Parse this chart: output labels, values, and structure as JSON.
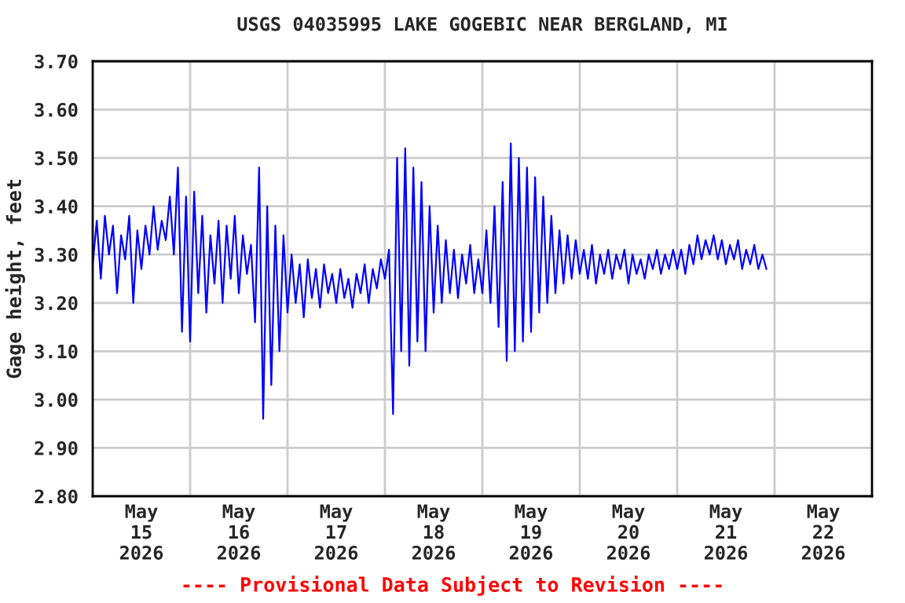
{
  "chart_data": {
    "type": "line",
    "title": "USGS 04035995 LAKE GOGEBIC NEAR BERGLAND, MI",
    "ylabel": "Gage height, feet",
    "annotations": [
      "---- Provisional Data Subject to Revision ----"
    ],
    "xlim": [
      "2026-05-15T00:00",
      "2026-05-23T00:00"
    ],
    "xticks": [
      {
        "value": "2026-05-15T12:00",
        "label": "May\n15\n2026"
      },
      {
        "value": "2026-05-16T00:00",
        "label": null
      },
      {
        "value": "2026-05-16T12:00",
        "label": "May\n16\n2026"
      },
      {
        "value": "2026-05-17T00:00",
        "label": null
      },
      {
        "value": "2026-05-17T12:00",
        "label": "May\n17\n2026"
      },
      {
        "value": "2026-05-18T00:00",
        "label": null
      },
      {
        "value": "2026-05-18T12:00",
        "label": "May\n18\n2026"
      },
      {
        "value": "2026-05-19T00:00",
        "label": null
      },
      {
        "value": "2026-05-19T12:00",
        "label": "May\n19\n2026"
      },
      {
        "value": "2026-05-20T00:00",
        "label": null
      },
      {
        "value": "2026-05-20T12:00",
        "label": "May\n20\n2026"
      },
      {
        "value": "2026-05-21T00:00",
        "label": null
      },
      {
        "value": "2026-05-21T12:00",
        "label": "May\n21\n2026"
      },
      {
        "value": "2026-05-22T00:00",
        "label": null
      },
      {
        "value": "2026-05-22T12:00",
        "label": "May\n22\n2026"
      }
    ],
    "ylim": [
      2.8,
      3.7
    ],
    "yticks": [
      {
        "value": 2.8,
        "label": "2.80"
      },
      {
        "value": 2.9,
        "label": "2.90"
      },
      {
        "value": 3.0,
        "label": "3.00"
      },
      {
        "value": 3.1,
        "label": "3.10"
      },
      {
        "value": 3.2,
        "label": "3.20"
      },
      {
        "value": 3.3,
        "label": "3.30"
      },
      {
        "value": 3.4,
        "label": "3.40"
      },
      {
        "value": 3.5,
        "label": "3.50"
      },
      {
        "value": 3.6,
        "label": "3.60"
      },
      {
        "value": 3.7,
        "label": "3.70"
      }
    ],
    "grid": true,
    "legend": false,
    "marker": "none",
    "line_style": "solid",
    "series": [
      {
        "color": "#0000ff",
        "x": [
          "2026-05-15T00:00",
          "2026-05-15T01:00",
          "2026-05-15T02:00",
          "2026-05-15T03:00",
          "2026-05-15T04:00",
          "2026-05-15T05:00",
          "2026-05-15T06:00",
          "2026-05-15T07:00",
          "2026-05-15T08:00",
          "2026-05-15T09:00",
          "2026-05-15T10:00",
          "2026-05-15T11:00",
          "2026-05-15T12:00",
          "2026-05-15T13:00",
          "2026-05-15T14:00",
          "2026-05-15T15:00",
          "2026-05-15T16:00",
          "2026-05-15T17:00",
          "2026-05-15T18:00",
          "2026-05-15T19:00",
          "2026-05-15T20:00",
          "2026-05-15T21:00",
          "2026-05-15T22:00",
          "2026-05-15T23:00",
          "2026-05-16T00:00",
          "2026-05-16T01:00",
          "2026-05-16T02:00",
          "2026-05-16T03:00",
          "2026-05-16T04:00",
          "2026-05-16T05:00",
          "2026-05-16T06:00",
          "2026-05-16T07:00",
          "2026-05-16T08:00",
          "2026-05-16T09:00",
          "2026-05-16T10:00",
          "2026-05-16T11:00",
          "2026-05-16T12:00",
          "2026-05-16T13:00",
          "2026-05-16T14:00",
          "2026-05-16T15:00",
          "2026-05-16T16:00",
          "2026-05-16T17:00",
          "2026-05-16T18:00",
          "2026-05-16T19:00",
          "2026-05-16T20:00",
          "2026-05-16T21:00",
          "2026-05-16T22:00",
          "2026-05-16T23:00",
          "2026-05-17T00:00",
          "2026-05-17T01:00",
          "2026-05-17T02:00",
          "2026-05-17T03:00",
          "2026-05-17T04:00",
          "2026-05-17T05:00",
          "2026-05-17T06:00",
          "2026-05-17T07:00",
          "2026-05-17T08:00",
          "2026-05-17T09:00",
          "2026-05-17T10:00",
          "2026-05-17T11:00",
          "2026-05-17T12:00",
          "2026-05-17T13:00",
          "2026-05-17T14:00",
          "2026-05-17T15:00",
          "2026-05-17T16:00",
          "2026-05-17T17:00",
          "2026-05-17T18:00",
          "2026-05-17T19:00",
          "2026-05-17T20:00",
          "2026-05-17T21:00",
          "2026-05-17T22:00",
          "2026-05-17T23:00",
          "2026-05-18T00:00",
          "2026-05-18T01:00",
          "2026-05-18T02:00",
          "2026-05-18T03:00",
          "2026-05-18T04:00",
          "2026-05-18T05:00",
          "2026-05-18T06:00",
          "2026-05-18T07:00",
          "2026-05-18T08:00",
          "2026-05-18T09:00",
          "2026-05-18T10:00",
          "2026-05-18T11:00",
          "2026-05-18T12:00",
          "2026-05-18T13:00",
          "2026-05-18T14:00",
          "2026-05-18T15:00",
          "2026-05-18T16:00",
          "2026-05-18T17:00",
          "2026-05-18T18:00",
          "2026-05-18T19:00",
          "2026-05-18T20:00",
          "2026-05-18T21:00",
          "2026-05-18T22:00",
          "2026-05-18T23:00",
          "2026-05-19T00:00",
          "2026-05-19T01:00",
          "2026-05-19T02:00",
          "2026-05-19T03:00",
          "2026-05-19T04:00",
          "2026-05-19T05:00",
          "2026-05-19T06:00",
          "2026-05-19T07:00",
          "2026-05-19T08:00",
          "2026-05-19T09:00",
          "2026-05-19T10:00",
          "2026-05-19T11:00",
          "2026-05-19T12:00",
          "2026-05-19T13:00",
          "2026-05-19T14:00",
          "2026-05-19T15:00",
          "2026-05-19T16:00",
          "2026-05-19T17:00",
          "2026-05-19T18:00",
          "2026-05-19T19:00",
          "2026-05-19T20:00",
          "2026-05-19T21:00",
          "2026-05-19T22:00",
          "2026-05-19T23:00",
          "2026-05-20T00:00",
          "2026-05-20T01:00",
          "2026-05-20T02:00",
          "2026-05-20T03:00",
          "2026-05-20T04:00",
          "2026-05-20T05:00",
          "2026-05-20T06:00",
          "2026-05-20T07:00",
          "2026-05-20T08:00",
          "2026-05-20T09:00",
          "2026-05-20T10:00",
          "2026-05-20T11:00",
          "2026-05-20T12:00",
          "2026-05-20T13:00",
          "2026-05-20T14:00",
          "2026-05-20T15:00",
          "2026-05-20T16:00",
          "2026-05-20T17:00",
          "2026-05-20T18:00",
          "2026-05-20T19:00",
          "2026-05-20T20:00",
          "2026-05-20T21:00",
          "2026-05-20T22:00",
          "2026-05-20T23:00",
          "2026-05-21T00:00",
          "2026-05-21T01:00",
          "2026-05-21T02:00",
          "2026-05-21T03:00",
          "2026-05-21T04:00",
          "2026-05-21T05:00",
          "2026-05-21T06:00",
          "2026-05-21T07:00",
          "2026-05-21T08:00",
          "2026-05-21T09:00",
          "2026-05-21T10:00",
          "2026-05-21T11:00",
          "2026-05-21T12:00",
          "2026-05-21T13:00",
          "2026-05-21T14:00",
          "2026-05-21T15:00",
          "2026-05-21T16:00",
          "2026-05-21T17:00",
          "2026-05-21T18:00",
          "2026-05-21T19:00",
          "2026-05-21T20:00",
          "2026-05-21T21:00",
          "2026-05-21T22:00"
        ],
        "values": [
          3.28,
          3.37,
          3.25,
          3.38,
          3.3,
          3.36,
          3.22,
          3.34,
          3.29,
          3.38,
          3.2,
          3.35,
          3.27,
          3.36,
          3.3,
          3.4,
          3.31,
          3.37,
          3.33,
          3.42,
          3.3,
          3.48,
          3.14,
          3.42,
          3.12,
          3.43,
          3.22,
          3.38,
          3.18,
          3.34,
          3.24,
          3.37,
          3.2,
          3.36,
          3.25,
          3.38,
          3.22,
          3.34,
          3.26,
          3.32,
          3.16,
          3.48,
          2.96,
          3.4,
          3.03,
          3.36,
          3.1,
          3.34,
          3.18,
          3.3,
          3.2,
          3.28,
          3.17,
          3.29,
          3.21,
          3.27,
          3.19,
          3.28,
          3.22,
          3.26,
          3.2,
          3.27,
          3.21,
          3.25,
          3.19,
          3.26,
          3.22,
          3.28,
          3.2,
          3.27,
          3.23,
          3.29,
          3.25,
          3.31,
          2.97,
          3.5,
          3.1,
          3.52,
          3.07,
          3.48,
          3.12,
          3.45,
          3.1,
          3.4,
          3.18,
          3.36,
          3.2,
          3.33,
          3.22,
          3.31,
          3.21,
          3.3,
          3.24,
          3.32,
          3.22,
          3.29,
          3.22,
          3.35,
          3.2,
          3.4,
          3.15,
          3.45,
          3.08,
          3.53,
          3.1,
          3.5,
          3.12,
          3.48,
          3.14,
          3.46,
          3.18,
          3.42,
          3.2,
          3.38,
          3.22,
          3.35,
          3.24,
          3.34,
          3.25,
          3.33,
          3.26,
          3.31,
          3.25,
          3.32,
          3.24,
          3.3,
          3.26,
          3.31,
          3.25,
          3.3,
          3.27,
          3.31,
          3.24,
          3.3,
          3.26,
          3.29,
          3.25,
          3.3,
          3.27,
          3.31,
          3.26,
          3.3,
          3.27,
          3.31,
          3.27,
          3.31,
          3.26,
          3.32,
          3.28,
          3.34,
          3.29,
          3.33,
          3.3,
          3.34,
          3.29,
          3.33,
          3.28,
          3.32,
          3.29,
          3.33,
          3.27,
          3.31,
          3.28,
          3.32,
          3.27,
          3.3,
          3.27
        ]
      }
    ]
  }
}
